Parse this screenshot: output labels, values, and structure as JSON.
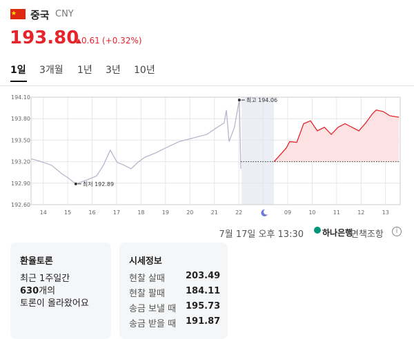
{
  "header": {
    "country": "중국",
    "currency": "CNY",
    "price": "193.80",
    "change": "0.61",
    "change_pct": "(+0.32%)"
  },
  "tabs": [
    "1일",
    "3개월",
    "1년",
    "3년",
    "10년"
  ],
  "chart_data": {
    "type": "line",
    "xlim": [
      -0.5,
      14.6
    ],
    "xticks": [
      {
        "value": 0,
        "label": "14"
      },
      {
        "value": 1,
        "label": "15"
      },
      {
        "value": 2,
        "label": "16"
      },
      {
        "value": 3,
        "label": "17"
      },
      {
        "value": 4,
        "label": "18"
      },
      {
        "value": 5,
        "label": "19"
      },
      {
        "value": 6,
        "label": "20"
      },
      {
        "value": 7,
        "label": "21"
      },
      {
        "value": 8,
        "label": "22"
      },
      {
        "value": 10,
        "label": "09"
      },
      {
        "value": 11,
        "label": "10"
      },
      {
        "value": 12,
        "label": "11"
      },
      {
        "value": 13,
        "label": "12"
      },
      {
        "value": 14,
        "label": "13"
      }
    ],
    "ylim": [
      192.6,
      194.1
    ],
    "yticks": [
      {
        "value": 194.1,
        "label": "194.10"
      },
      {
        "value": 193.8,
        "label": "193.80"
      },
      {
        "value": 193.5,
        "label": "193.50"
      },
      {
        "value": 193.2,
        "label": "193.20"
      },
      {
        "value": 192.9,
        "label": "192.90"
      },
      {
        "value": 192.6,
        "label": "192.60"
      }
    ],
    "grid": true,
    "baseline": 193.2,
    "series": [
      {
        "color": "#b4b7cc",
        "x": [
          -0.5,
          -0.08,
          0.34,
          0.76,
          0.99,
          1.33,
          1.75,
          2.18,
          2.46,
          2.74,
          3.02,
          3.31,
          3.59,
          3.87,
          4.15,
          4.58,
          5.0,
          5.56,
          6.13,
          6.69,
          7.12,
          7.4,
          7.49,
          7.6,
          7.82,
          7.99,
          8.02,
          8.08
        ],
        "values": [
          193.24,
          193.2,
          193.15,
          193.03,
          192.98,
          192.89,
          192.94,
          193.0,
          193.15,
          193.36,
          193.19,
          193.15,
          193.1,
          193.19,
          193.26,
          193.32,
          193.39,
          193.48,
          193.53,
          193.58,
          193.68,
          193.74,
          193.92,
          193.48,
          193.68,
          194.01,
          194.06,
          193.1
        ]
      },
      {
        "color": "#e5242b",
        "fill": "#fde2e3",
        "x": [
          9.44,
          9.94,
          10.08,
          10.37,
          10.65,
          10.93,
          11.21,
          11.5,
          11.78,
          12.06,
          12.34,
          12.63,
          12.91,
          13.19,
          13.47,
          13.62,
          13.9,
          14.18,
          14.55
        ],
        "values": [
          193.2,
          193.39,
          193.48,
          193.47,
          193.73,
          193.77,
          193.63,
          193.68,
          193.58,
          193.68,
          193.73,
          193.68,
          193.63,
          193.74,
          193.87,
          193.92,
          193.9,
          193.84,
          193.82
        ]
      }
    ],
    "annotations": [
      {
        "label": "최고 194.06",
        "x": 8.02,
        "y": 194.06
      },
      {
        "label": "최저 192.89",
        "x": 1.33,
        "y": 192.89
      }
    ]
  },
  "footer": {
    "timestamp": "7월 17일 오후 13:30",
    "bank": "하나은행",
    "disclaimer": "면책조항"
  },
  "discussion": {
    "title": "환율토론",
    "line1": "최근 1주일간",
    "count": "630",
    "count_suffix": "개의",
    "line3": "토론이 올라왔어요"
  },
  "rates": {
    "title": "시세정보",
    "rows": [
      [
        "현찰 살때",
        "203.49"
      ],
      [
        "현찰 팔때",
        "184.11"
      ],
      [
        "송금 보낼 때",
        "195.73"
      ],
      [
        "송금 받을 때",
        "191.87"
      ]
    ]
  }
}
